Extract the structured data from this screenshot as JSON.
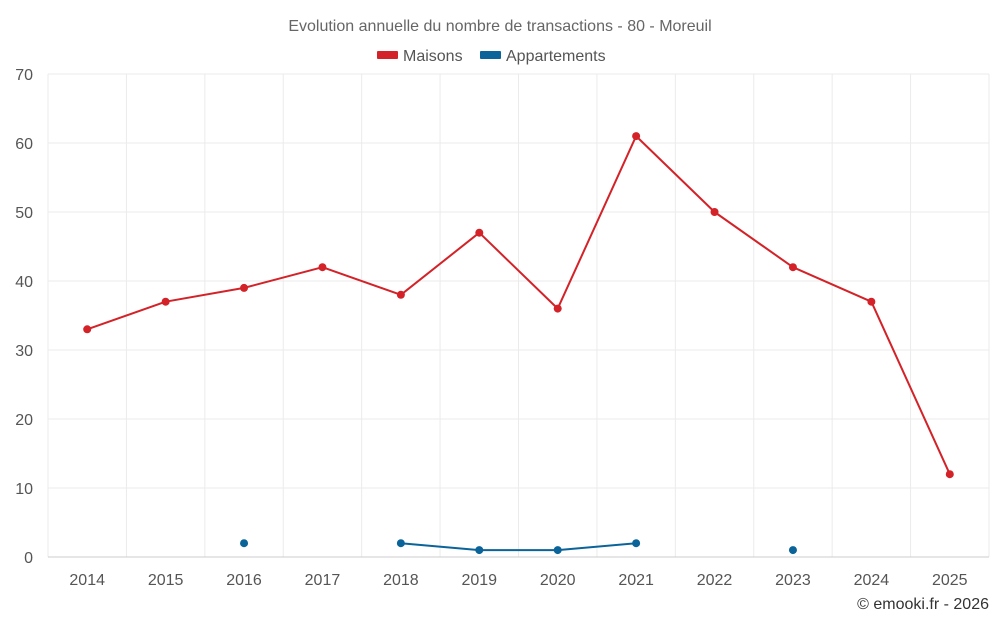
{
  "chart_data": {
    "type": "line",
    "title": "Evolution annuelle du nombre de transactions - 80 - Moreuil",
    "categories": [
      "2014",
      "2015",
      "2016",
      "2017",
      "2018",
      "2019",
      "2020",
      "2021",
      "2022",
      "2023",
      "2024",
      "2025"
    ],
    "series": [
      {
        "name": "Maisons",
        "color": "#d32228",
        "values": [
          33,
          37,
          39,
          42,
          38,
          47,
          36,
          61,
          50,
          42,
          37,
          12
        ]
      },
      {
        "name": "Appartements",
        "color": "#0a6399",
        "values": [
          null,
          null,
          2,
          null,
          2,
          1,
          1,
          2,
          null,
          1,
          null,
          null
        ]
      }
    ],
    "ylim": [
      0,
      70
    ],
    "yticks": [
      0,
      10,
      20,
      30,
      40,
      50,
      60,
      70
    ],
    "xlabel": "",
    "ylabel": "",
    "grid": true,
    "legend_position": "top-center"
  },
  "credit": "© emooki.fr - 2026"
}
